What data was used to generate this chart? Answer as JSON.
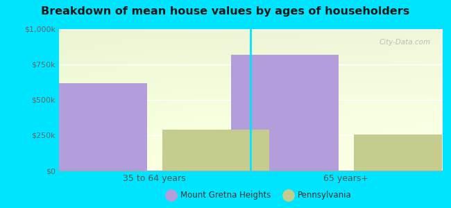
{
  "title": "Breakdown of mean house values by ages of householders",
  "categories": [
    "35 to 64 years",
    "65 years+"
  ],
  "series": {
    "Mount Gretna Heights": [
      620000,
      820000
    ],
    "Pennsylvania": [
      290000,
      255000
    ]
  },
  "bar_colors": {
    "Mount Gretna Heights": "#b39ddb",
    "Pennsylvania": "#c5cc8e"
  },
  "ylim": [
    0,
    1000000
  ],
  "yticks": [
    0,
    250000,
    500000,
    750000,
    1000000
  ],
  "ytick_labels": [
    "$0",
    "$250k",
    "$500k",
    "$750k",
    "$1,000k"
  ],
  "background_outer": "#00e5ff",
  "bar_width": 0.28,
  "legend_labels": [
    "Mount Gretna Heights",
    "Pennsylvania"
  ],
  "watermark": "City-Data.com"
}
